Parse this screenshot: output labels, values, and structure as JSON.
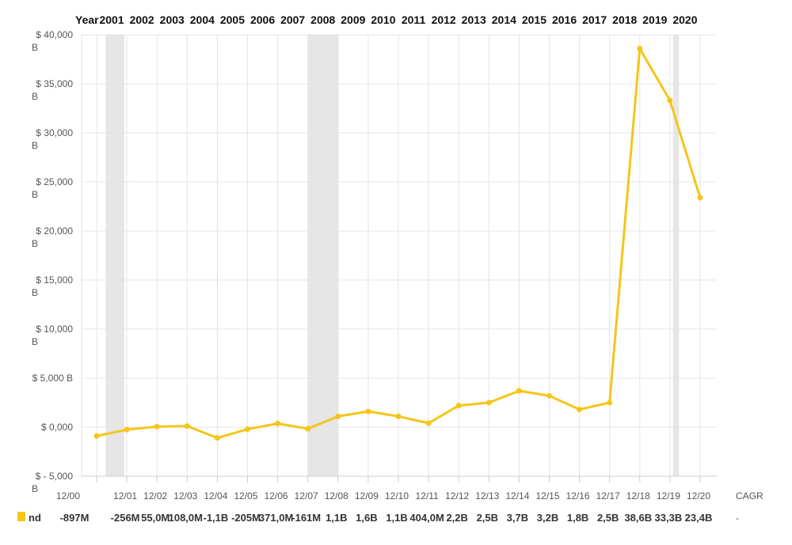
{
  "chart_data": {
    "type": "line",
    "header_label": "Year",
    "years": [
      "2001",
      "2002",
      "2003",
      "2004",
      "2005",
      "2006",
      "2007",
      "2008",
      "2009",
      "2010",
      "2011",
      "2012",
      "2013",
      "2014",
      "2015",
      "2016",
      "2017",
      "2018",
      "2019",
      "2020"
    ],
    "x_tick_labels": [
      "12/00",
      "12/01",
      "12/02",
      "12/03",
      "12/04",
      "12/05",
      "12/06",
      "12/07",
      "12/08",
      "12/09",
      "12/10",
      "12/11",
      "12/12",
      "12/13",
      "12/14",
      "12/15",
      "12/16",
      "12/17",
      "12/18",
      "12/19",
      "12/20"
    ],
    "y_tick_labels": [
      [
        "$ 40,000",
        "B"
      ],
      [
        "$ 35,000",
        "B"
      ],
      [
        "$ 30,000",
        "B"
      ],
      [
        "$ 25,000",
        "B"
      ],
      [
        "$ 20,000",
        "B"
      ],
      [
        "$ 15,000",
        "B"
      ],
      [
        "$ 10,000",
        "B"
      ],
      [
        "$ 5,000 B"
      ],
      [
        "$ 0,000"
      ],
      [
        "$ - 5,000",
        "B"
      ]
    ],
    "y_tick_values": [
      40000,
      35000,
      30000,
      25000,
      20000,
      15000,
      10000,
      5000,
      0,
      -5000
    ],
    "ylim": [
      -5000,
      40000
    ],
    "grid": true,
    "recession_bands": [
      {
        "from": "12/00",
        "to": "12/01",
        "from_frac": 0.3,
        "to_frac": 0.92
      },
      {
        "from": "12/07",
        "to": "12/09",
        "from_frac": 0.0,
        "to_frac": 0.5
      },
      {
        "from": "12/19",
        "to": "12/20",
        "from_frac": 0.1,
        "to_frac": 0.3
      }
    ],
    "series": [
      {
        "name": "nd",
        "color": "#f5c518",
        "x": [
          "12/00",
          "12/01",
          "12/02",
          "12/03",
          "12/04",
          "12/05",
          "12/06",
          "12/07",
          "12/08",
          "12/09",
          "12/10",
          "12/11",
          "12/12",
          "12/13",
          "12/14",
          "12/15",
          "12/16",
          "12/17",
          "12/18",
          "12/19",
          "12/20"
        ],
        "values": [
          -897,
          -256,
          55,
          108,
          -1100,
          -205,
          371,
          -161,
          1100,
          1600,
          1100,
          404,
          2200,
          2500,
          3700,
          3200,
          1800,
          2500,
          38600,
          33300,
          23400
        ],
        "display_values": [
          "-897M",
          "-256M",
          "55,0M",
          "108,0M",
          "-1,1B",
          "-205M",
          "371,0M",
          "-161M",
          "1,1B",
          "1,6B",
          "1,1B",
          "404,0M",
          "2,2B",
          "2,5B",
          "3,7B",
          "3,2B",
          "1,8B",
          "2,5B",
          "38,6B",
          "33,3B",
          "23,4B"
        ],
        "cagr_label": "CAGR",
        "cagr_value": "-"
      }
    ]
  }
}
